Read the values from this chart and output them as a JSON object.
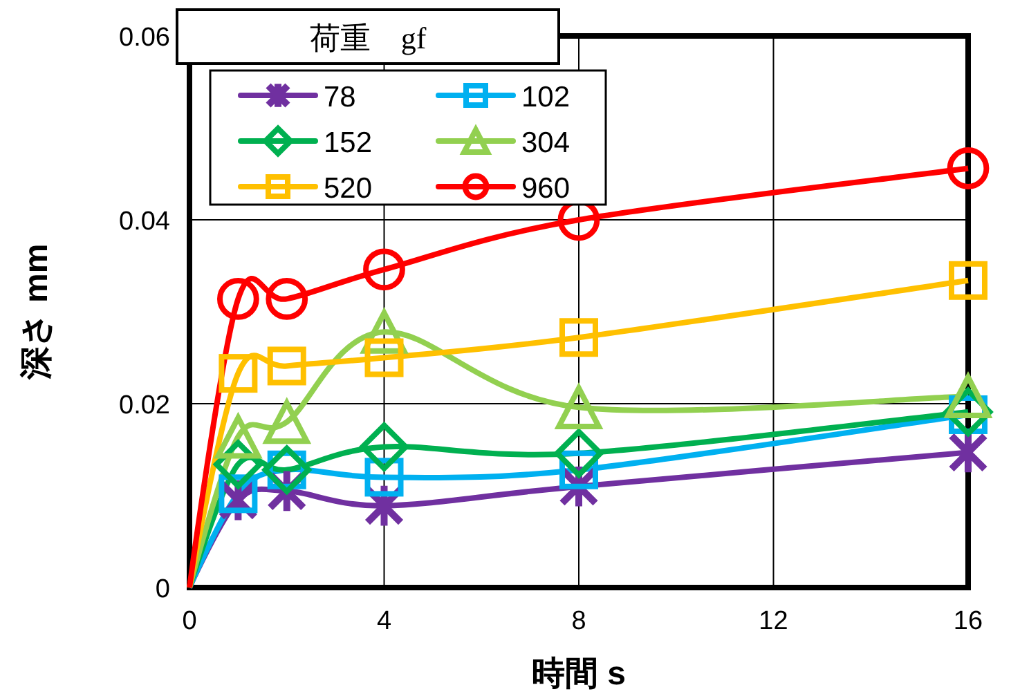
{
  "chart_data": {
    "type": "line",
    "xlabel": "時間 s",
    "ylabel": "深さ mm",
    "legend_title": "荷重　gf",
    "x": [
      0,
      1,
      2,
      4,
      8,
      16
    ],
    "xlim": [
      0,
      16
    ],
    "xticks": [
      0,
      4,
      8,
      12,
      16
    ],
    "ylim": [
      0,
      0.06
    ],
    "yticks": [
      0,
      0.02,
      0.04,
      0.06
    ],
    "grid": true,
    "legend": "top left",
    "series": [
      {
        "name": "78",
        "color": "#7030a0",
        "marker": "cross",
        "values": [
          0,
          0.0095,
          0.0105,
          0.0089,
          0.011,
          0.0147
        ]
      },
      {
        "name": "102",
        "color": "#00b0f0",
        "marker": "square",
        "values": [
          0,
          0.0102,
          0.0128,
          0.012,
          0.0128,
          0.0188
        ]
      },
      {
        "name": "152",
        "color": "#00b050",
        "marker": "diamond",
        "values": [
          0,
          0.0134,
          0.0128,
          0.0153,
          0.0146,
          0.0191
        ]
      },
      {
        "name": "304",
        "color": "#92d050",
        "marker": "triangle",
        "values": [
          0,
          0.0164,
          0.018,
          0.0278,
          0.0196,
          0.0208
        ]
      },
      {
        "name": "520",
        "color": "#ffc000",
        "marker": "square",
        "values": [
          0,
          0.0233,
          0.0241,
          0.025,
          0.0272,
          0.0334
        ]
      },
      {
        "name": "960",
        "color": "#ff0000",
        "marker": "circle",
        "values": [
          0,
          0.0314,
          0.0314,
          0.0346,
          0.04,
          0.0456
        ]
      }
    ]
  }
}
